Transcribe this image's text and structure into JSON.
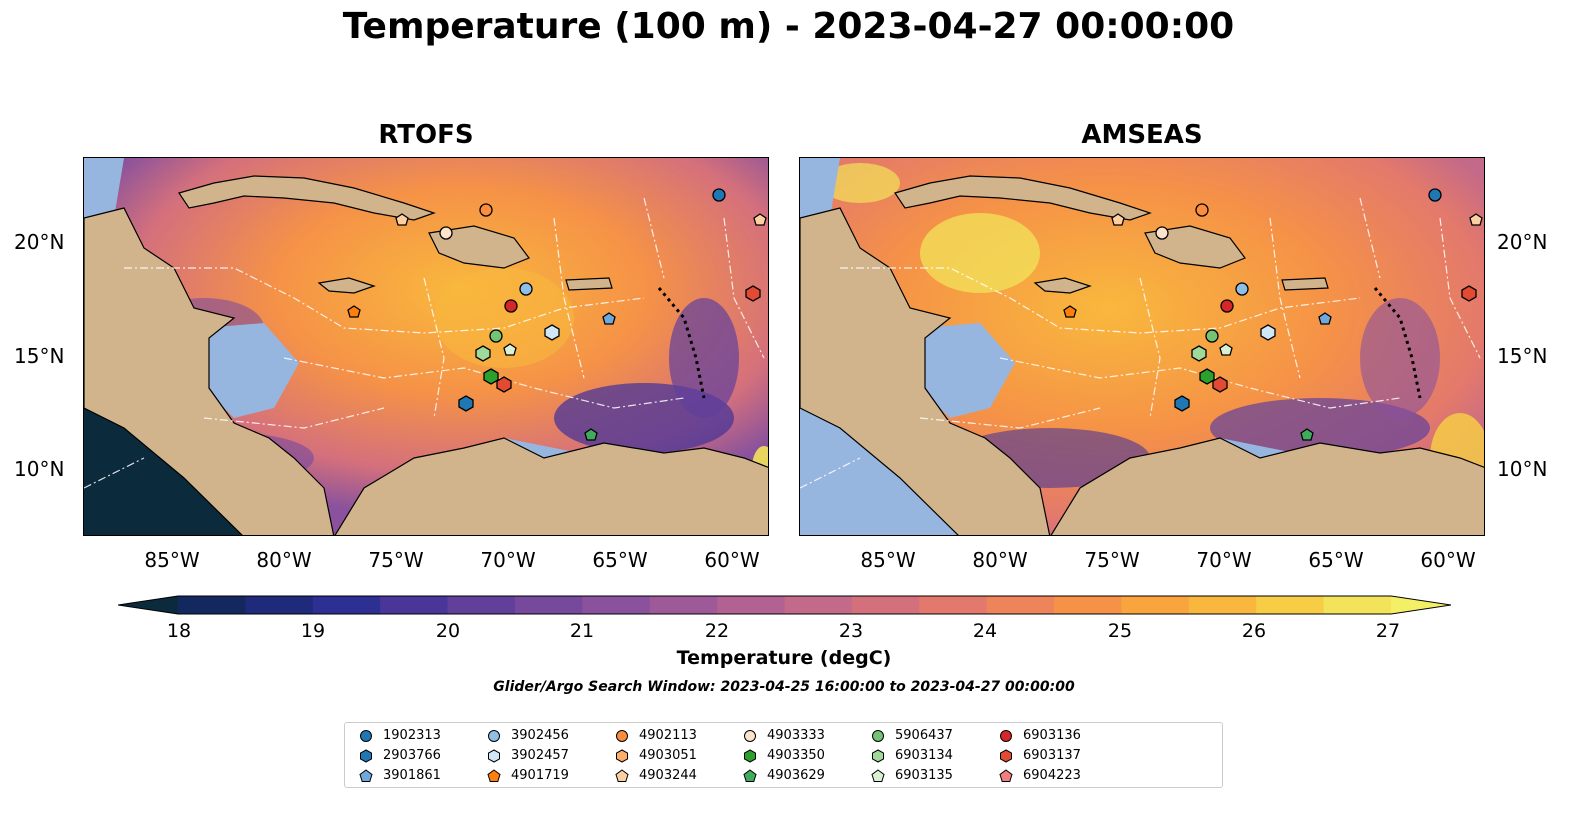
{
  "title": "Temperature (100 m) - 2023-04-27 00:00:00",
  "panels": [
    {
      "title": "RTOFS"
    },
    {
      "title": "AMSEAS"
    }
  ],
  "lat_labels": [
    "20°N",
    "15°N",
    "10°N"
  ],
  "lon_labels": [
    "85°W",
    "80°W",
    "75°W",
    "70°W",
    "65°W",
    "60°W"
  ],
  "colorbar": {
    "label": "Temperature (degC)",
    "ticks": [
      "18",
      "19",
      "20",
      "21",
      "22",
      "23",
      "24",
      "25",
      "26",
      "27"
    ],
    "min": 18,
    "max": 27,
    "colors": [
      "#0b2a3c",
      "#13285e",
      "#1f2a7a",
      "#2e2f93",
      "#4a3598",
      "#61409c",
      "#76499d",
      "#8a529c",
      "#9e5a98",
      "#b16192",
      "#c36989",
      "#d4707c",
      "#e3796c",
      "#ee845a",
      "#f59247",
      "#f9a43c",
      "#f9b83d",
      "#f7cd45",
      "#f2e35a"
    ],
    "over_color": "#f3f066",
    "under_color": "#0b2a3c"
  },
  "search_window": "Glider/Argo Search Window: 2023-04-25 16:00:00 to 2023-04-27 00:00:00",
  "legend": [
    {
      "label": "1902313",
      "shape": "circle",
      "color": "#1f77b4"
    },
    {
      "label": "2903766",
      "shape": "hexagon",
      "color": "#1f77b4"
    },
    {
      "label": "3901861",
      "shape": "pentagon",
      "color": "#6fa8dc"
    },
    {
      "label": "3902456",
      "shape": "circle",
      "color": "#8fbfe6"
    },
    {
      "label": "3902457",
      "shape": "hexagon",
      "color": "#d0e7f7"
    },
    {
      "label": "4901719",
      "shape": "pentagon",
      "color": "#ff7f0e"
    },
    {
      "label": "4902113",
      "shape": "circle",
      "color": "#fd8d3c"
    },
    {
      "label": "4903051",
      "shape": "hexagon",
      "color": "#fdae6b"
    },
    {
      "label": "4903244",
      "shape": "pentagon",
      "color": "#fdd0a2"
    },
    {
      "label": "4903333",
      "shape": "circle",
      "color": "#fde3cc"
    },
    {
      "label": "4903350",
      "shape": "hexagon",
      "color": "#2ca02c"
    },
    {
      "label": "4903629",
      "shape": "pentagon",
      "color": "#41ab5d"
    },
    {
      "label": "5906437",
      "shape": "circle",
      "color": "#74c476"
    },
    {
      "label": "6903134",
      "shape": "hexagon",
      "color": "#a1d99b"
    },
    {
      "label": "6903135",
      "shape": "pentagon",
      "color": "#d9f0d3"
    },
    {
      "label": "6903136",
      "shape": "circle",
      "color": "#d62728"
    },
    {
      "label": "6903137",
      "shape": "hexagon",
      "color": "#e34a33"
    },
    {
      "label": "6904223",
      "shape": "pentagon",
      "color": "#f08080"
    }
  ],
  "colors": {
    "land": "#d2b48c",
    "shallow_water": "#96b6e0",
    "deep_pacific": "#0b2a3c"
  }
}
